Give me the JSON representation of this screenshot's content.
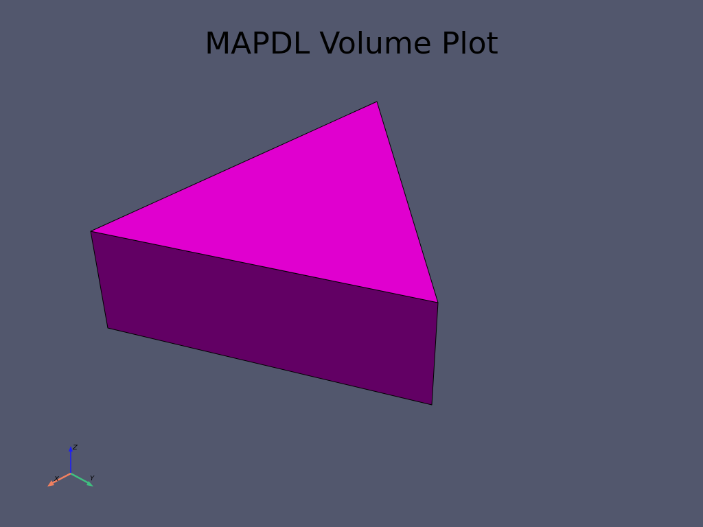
{
  "title": "MAPDL Volume Plot",
  "colors": {
    "background": "#52576d",
    "top_face": "#e000cf",
    "side_face": "#620064",
    "edge": "#000000",
    "axis_x": "#f08060",
    "axis_y": "#40c080",
    "axis_z": "#1a1aff"
  },
  "axes": {
    "x_label": "X",
    "y_label": "Y",
    "z_label": "Z"
  }
}
